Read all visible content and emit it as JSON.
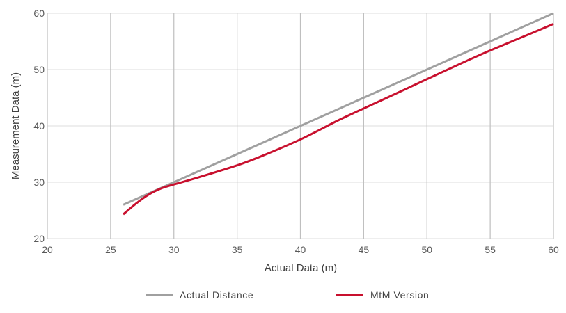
{
  "chart_data": {
    "type": "line",
    "xlabel": "Actual Data (m)",
    "ylabel": "Measurement Data (m)",
    "xlim": [
      20,
      60
    ],
    "ylim": [
      20,
      60
    ],
    "x_ticks": [
      20,
      25,
      30,
      35,
      40,
      45,
      50,
      55,
      60
    ],
    "y_ticks": [
      20,
      30,
      40,
      50,
      60
    ],
    "grid": true,
    "legend_position": "bottom",
    "series": [
      {
        "name": "Actual Distance",
        "color": "#a0a0a0",
        "x": [
          26,
          30,
          35,
          40,
          45,
          50,
          55,
          60
        ],
        "y": [
          26,
          30,
          35,
          40,
          45,
          50,
          55,
          60
        ]
      },
      {
        "name": "MtM Version",
        "color": "#c8102e",
        "x": [
          26,
          27,
          28,
          29,
          30,
          32,
          35,
          37,
          40,
          43,
          45,
          48,
          50,
          53,
          55,
          58,
          60
        ],
        "y": [
          24.3,
          26.2,
          27.8,
          28.9,
          29.6,
          30.9,
          33.0,
          34.7,
          37.6,
          41.0,
          43.1,
          46.2,
          48.3,
          51.4,
          53.4,
          56.2,
          58.1
        ]
      }
    ]
  }
}
